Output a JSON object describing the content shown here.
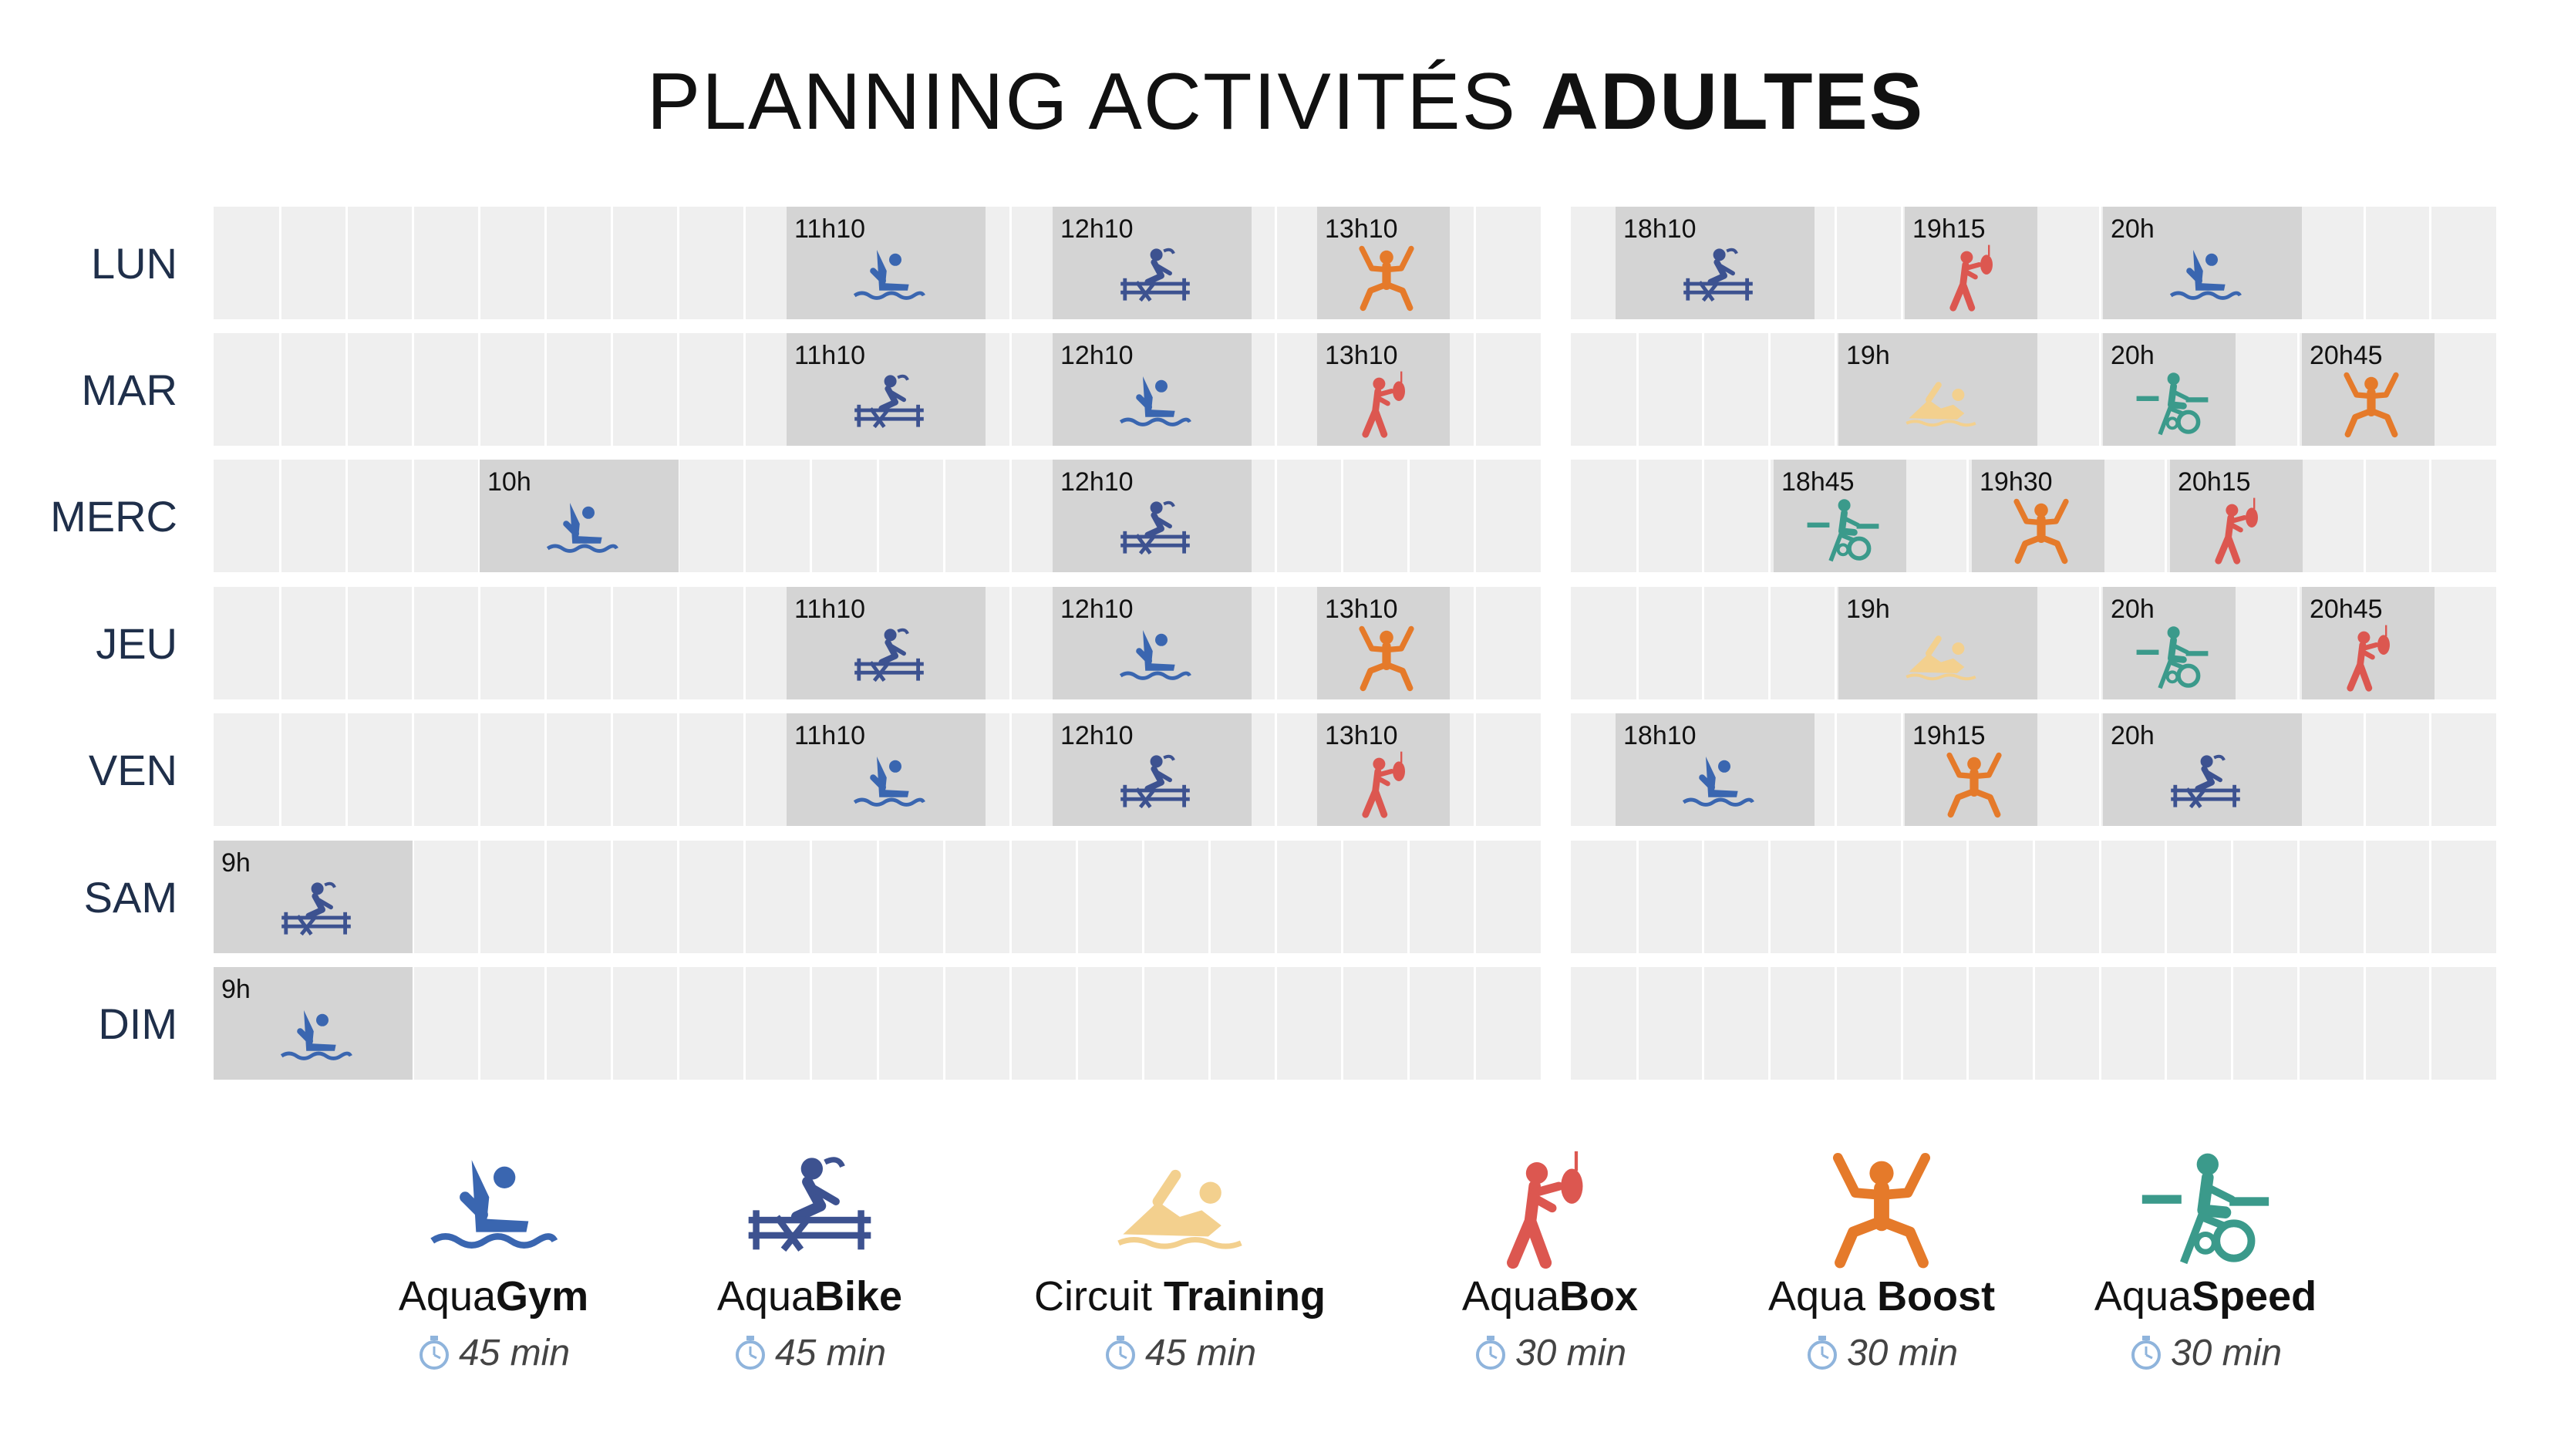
{
  "title": {
    "light": "PLANNING ACTIVITÉS",
    "bold": "ADULTES"
  },
  "days": [
    "LUN",
    "MAR",
    "MERC",
    "JEU",
    "VEN",
    "SAM",
    "DIM"
  ],
  "colors": {
    "aquagym": "#3a66b0",
    "aquabike": "#3d5290",
    "circuit": "#f3d08e",
    "aquabox": "#dc5750",
    "aquaboost": "#e57a2a",
    "aquaspeed": "#3b9a8b"
  },
  "sessions": {
    "LUN": [
      {
        "time": "11h10",
        "activity": "aquagym"
      },
      {
        "time": "12h10",
        "activity": "aquabike"
      },
      {
        "time": "13h10",
        "activity": "aquaboost"
      },
      {
        "time": "18h10",
        "activity": "aquabike"
      },
      {
        "time": "19h15",
        "activity": "aquabox"
      },
      {
        "time": "20h",
        "activity": "aquagym"
      }
    ],
    "MAR": [
      {
        "time": "11h10",
        "activity": "aquabike"
      },
      {
        "time": "12h10",
        "activity": "aquagym"
      },
      {
        "time": "13h10",
        "activity": "aquabox"
      },
      {
        "time": "19h",
        "activity": "circuit"
      },
      {
        "time": "20h",
        "activity": "aquaspeed"
      },
      {
        "time": "20h45",
        "activity": "aquaboost"
      }
    ],
    "MERC": [
      {
        "time": "10h",
        "activity": "aquagym"
      },
      {
        "time": "12h10",
        "activity": "aquabike"
      },
      {
        "time": "18h45",
        "activity": "aquaspeed"
      },
      {
        "time": "19h30",
        "activity": "aquaboost"
      },
      {
        "time": "20h15",
        "activity": "aquabox"
      }
    ],
    "JEU": [
      {
        "time": "11h10",
        "activity": "aquabike"
      },
      {
        "time": "12h10",
        "activity": "aquagym"
      },
      {
        "time": "13h10",
        "activity": "aquaboost"
      },
      {
        "time": "19h",
        "activity": "circuit"
      },
      {
        "time": "20h",
        "activity": "aquaspeed"
      },
      {
        "time": "20h45",
        "activity": "aquabox"
      }
    ],
    "VEN": [
      {
        "time": "11h10",
        "activity": "aquagym"
      },
      {
        "time": "12h10",
        "activity": "aquabike"
      },
      {
        "time": "13h10",
        "activity": "aquabox"
      },
      {
        "time": "18h10",
        "activity": "aquagym"
      },
      {
        "time": "19h15",
        "activity": "aquaboost"
      },
      {
        "time": "20h",
        "activity": "aquabike"
      }
    ],
    "SAM": [
      {
        "time": "9h",
        "activity": "aquabike"
      }
    ],
    "DIM": [
      {
        "time": "9h",
        "activity": "aquagym"
      }
    ]
  },
  "legend": [
    {
      "activity": "aquagym",
      "light": "Aqua",
      "bold": "Gym",
      "duration": "45 min",
      "icon": "aquagym-icon"
    },
    {
      "activity": "aquabike",
      "light": "Aqua",
      "bold": "Bike",
      "duration": "45 min",
      "icon": "aquabike-icon"
    },
    {
      "activity": "circuit",
      "light": "Circuit ",
      "bold": "Training",
      "duration": "45 min",
      "icon": "circuit-training-icon"
    },
    {
      "activity": "aquabox",
      "light": "Aqua",
      "bold": "Box",
      "duration": "30 min",
      "icon": "aquabox-icon"
    },
    {
      "activity": "aquaboost",
      "light": "Aqua ",
      "bold": "Boost",
      "duration": "30 min",
      "icon": "aquaboost-icon"
    },
    {
      "activity": "aquaspeed",
      "light": "Aqua",
      "bold": "Speed",
      "duration": "30 min",
      "icon": "aquaspeed-icon"
    }
  ]
}
